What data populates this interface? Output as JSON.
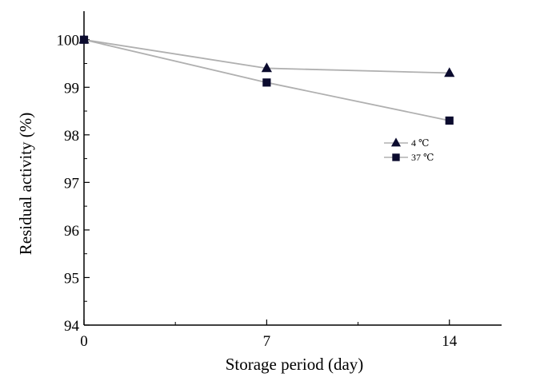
{
  "chart_data": {
    "type": "line",
    "title": "",
    "xlabel": "Storage period (day)",
    "ylabel": "Residual activity (%)",
    "x": [
      0,
      7,
      14
    ],
    "x_ticks": [
      "0",
      "7",
      "14"
    ],
    "xlim": [
      0,
      16
    ],
    "ylim": [
      94,
      100.6
    ],
    "y_ticks": [
      "94",
      "95",
      "96",
      "97",
      "98",
      "99",
      "100"
    ],
    "grid": false,
    "legend_position": "right",
    "series": [
      {
        "name": "4 ℃",
        "marker": "triangle",
        "values": [
          100,
          99.4,
          99.3
        ]
      },
      {
        "name": "37 ℃",
        "marker": "square",
        "values": [
          100,
          99.1,
          98.3
        ]
      }
    ],
    "colors": {
      "line": "#b0b0b0",
      "marker": "#0b0b2e",
      "axis": "#000000"
    }
  }
}
